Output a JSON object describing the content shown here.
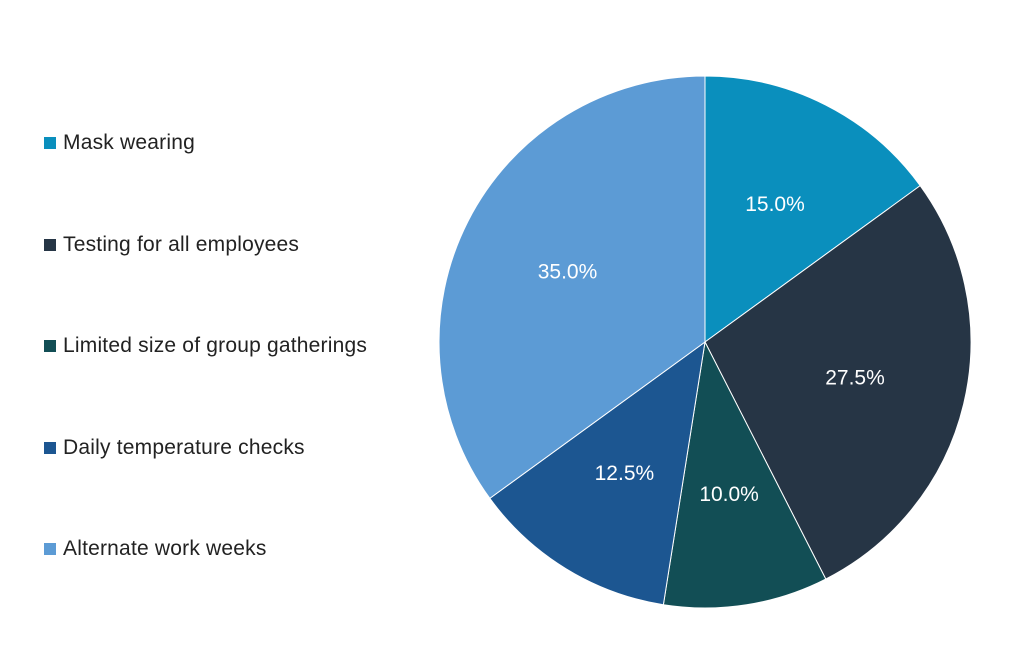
{
  "chart_data": {
    "type": "pie",
    "categories": [
      "Mask wearing",
      "Testing for all employees",
      "Limited size of group gatherings",
      "Daily temperature checks",
      "Alternate work weeks"
    ],
    "values": [
      15.0,
      27.5,
      10.0,
      12.5,
      35.0
    ],
    "value_labels": [
      "15.0%",
      "27.5%",
      "10.0%",
      "12.5%",
      "35.0%"
    ],
    "colors": [
      "#0a8fbd",
      "#263545",
      "#124e55",
      "#1c5691",
      "#5c9bd5"
    ],
    "unit": "%",
    "start_angle": "12 o'clock",
    "direction": "clockwise",
    "legend_position": "left"
  }
}
